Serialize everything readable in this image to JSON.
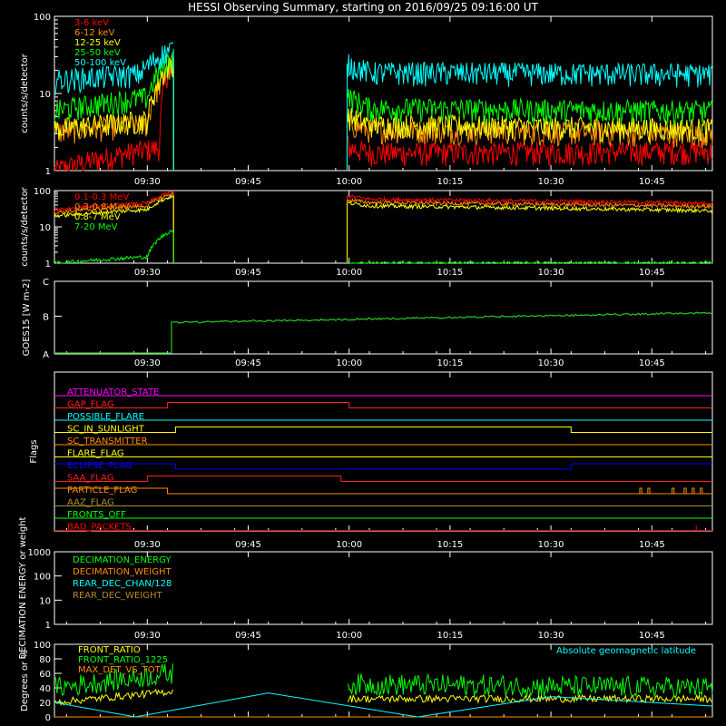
{
  "title": "HESSI Observing Summary, starting on 2016/09/25 09:16:00 UT",
  "time_labels": [
    "09:30",
    "09:45",
    "10:00",
    "10:15",
    "10:30",
    "10:45"
  ],
  "colors": {
    "background": "#000000",
    "axes": "#ffffff",
    "red": "#ff0000",
    "orange": "#ff8c00",
    "yellow": "#ffff00",
    "green": "#00ff00",
    "cyan": "#00ffff",
    "magenta": "#ff00ff",
    "blue": "#0000ff",
    "olive": "#b08c2c",
    "goes_green": "#22cc22"
  },
  "chart_data": [
    {
      "id": "lo_energy",
      "type": "line",
      "ylabel": "counts/s/detector",
      "yscale": "log",
      "ylim": [
        1,
        100
      ],
      "ytick_labels": [
        "1",
        "10",
        "100"
      ],
      "legend_position": "top-left",
      "series": [
        {
          "name": "3-6 keV",
          "color": "#ff0000",
          "values": [
            [
              9.27,
              1
            ],
            [
              9.53,
              2
            ],
            [
              9.56,
              28
            ],
            [
              10.0,
              2
            ],
            [
              10.05,
              1.7
            ],
            [
              10.9,
              1.8
            ]
          ]
        },
        {
          "name": "6-12 keV",
          "color": "#ff8c00",
          "values": [
            [
              9.27,
              3.2
            ],
            [
              9.5,
              4
            ],
            [
              9.56,
              22
            ],
            [
              10.0,
              4
            ],
            [
              10.05,
              3.4
            ],
            [
              10.9,
              3
            ]
          ]
        },
        {
          "name": "12-25 keV",
          "color": "#ffff00",
          "values": [
            [
              9.27,
              3.5
            ],
            [
              9.5,
              4.5
            ],
            [
              9.56,
              25
            ],
            [
              10.0,
              5
            ],
            [
              10.05,
              4
            ],
            [
              10.9,
              3.5
            ]
          ]
        },
        {
          "name": "25-50 keV",
          "color": "#00ff00",
          "values": [
            [
              9.27,
              6
            ],
            [
              9.5,
              9
            ],
            [
              9.56,
              30
            ],
            [
              10.0,
              9
            ],
            [
              10.05,
              6.5
            ],
            [
              10.9,
              6
            ]
          ]
        },
        {
          "name": "50-100 keV",
          "color": "#00ffff",
          "values": [
            [
              9.27,
              15
            ],
            [
              9.48,
              18
            ],
            [
              9.56,
              38
            ],
            [
              10.0,
              24
            ],
            [
              10.05,
              19
            ],
            [
              10.9,
              18
            ]
          ]
        }
      ]
    },
    {
      "id": "hi_energy",
      "type": "line",
      "ylabel": "counts/s/detector",
      "yscale": "log",
      "ylim": [
        1,
        100
      ],
      "ytick_labels": [
        "1",
        "10",
        "100"
      ],
      "legend_position": "top-left",
      "series": [
        {
          "name": "0.1-0.3 MeV",
          "color": "#ff0000",
          "values": [
            [
              9.27,
              30
            ],
            [
              9.5,
              45
            ],
            [
              9.56,
              90
            ],
            [
              10.0,
              70
            ],
            [
              10.05,
              58
            ],
            [
              10.9,
              45
            ]
          ]
        },
        {
          "name": "0.3-0.8 MeV",
          "color": "#ff8c00",
          "values": [
            [
              9.27,
              25
            ],
            [
              9.5,
              38
            ],
            [
              9.56,
              80
            ],
            [
              10.0,
              55
            ],
            [
              10.05,
              47
            ],
            [
              10.9,
              37
            ]
          ]
        },
        {
          "name": "0.8-7 MeV",
          "color": "#ffff00",
          "values": [
            [
              9.27,
              20
            ],
            [
              9.5,
              30
            ],
            [
              9.56,
              70
            ],
            [
              10.0,
              45
            ],
            [
              10.05,
              38
            ],
            [
              10.9,
              28
            ]
          ]
        },
        {
          "name": "7-20 MeV",
          "color": "#00ff00",
          "values": [
            [
              9.27,
              1
            ],
            [
              9.5,
              1.5
            ],
            [
              9.56,
              8
            ],
            [
              10.0,
              1
            ],
            [
              10.05,
              1
            ],
            [
              10.9,
              1
            ]
          ]
        }
      ]
    },
    {
      "id": "goes",
      "type": "line",
      "ylabel": "GOES15 [W m-2]",
      "yscale": "log",
      "ytick_labels": [
        "A",
        "B",
        "C"
      ],
      "series": [
        {
          "name": "",
          "color": "#22cc22",
          "values": [
            [
              9.27,
              "A"
            ],
            [
              9.55,
              "A"
            ],
            [
              9.56,
              "B"
            ],
            [
              10.0,
              "B"
            ],
            [
              10.9,
              "B"
            ]
          ]
        }
      ]
    },
    {
      "id": "flags",
      "type": "line",
      "ylabel": "Flags",
      "series": [
        {
          "name": "ATTENUATOR_STATE",
          "color": "#ff00ff",
          "values": [
            [
              9.27,
              0
            ],
            [
              10.9,
              0
            ]
          ]
        },
        {
          "name": "GAP_FLAG",
          "color": "#ff2020",
          "values": [
            [
              9.27,
              0
            ],
            [
              9.55,
              0
            ],
            [
              9.55,
              1
            ],
            [
              10.0,
              1
            ],
            [
              10.0,
              0
            ],
            [
              10.9,
              0
            ]
          ]
        },
        {
          "name": "POSSIBLE_FLARE",
          "color": "#00ffff",
          "values": [
            [
              9.27,
              0
            ],
            [
              10.9,
              0
            ]
          ]
        },
        {
          "name": "SC_IN_SUNLIGHT",
          "color": "#ffff00",
          "values": [
            [
              9.27,
              0
            ],
            [
              9.57,
              0
            ],
            [
              9.57,
              1
            ],
            [
              10.55,
              1
            ],
            [
              10.55,
              0
            ],
            [
              10.9,
              0
            ]
          ]
        },
        {
          "name": "SC_TRANSMITTER",
          "color": "#ff8c00",
          "values": [
            [
              9.27,
              0
            ],
            [
              10.9,
              0
            ]
          ]
        },
        {
          "name": "FLARE_FLAG",
          "color": "#ffff00",
          "values": [
            [
              9.27,
              0
            ],
            [
              10.9,
              0
            ]
          ]
        },
        {
          "name": "ECLIPSE_FLAG",
          "color": "#0000ff",
          "values": [
            [
              9.27,
              1
            ],
            [
              9.57,
              1
            ],
            [
              9.57,
              0
            ],
            [
              10.55,
              0
            ],
            [
              10.55,
              1
            ],
            [
              10.9,
              1
            ]
          ]
        },
        {
          "name": "SAA_FLAG",
          "color": "#ff2020",
          "values": [
            [
              9.27,
              0
            ],
            [
              9.5,
              0
            ],
            [
              9.5,
              1
            ],
            [
              9.98,
              1
            ],
            [
              9.98,
              0
            ],
            [
              10.9,
              0
            ]
          ]
        },
        {
          "name": "PARTICLE_FLAG",
          "color": "#ff8c00",
          "values": [
            [
              9.27,
              1
            ],
            [
              9.55,
              1
            ],
            [
              9.55,
              0
            ],
            [
              10.9,
              0
            ]
          ]
        },
        {
          "name": "AAZ_FLAG",
          "color": "#b08c2c",
          "values": [
            [
              9.27,
              0
            ],
            [
              10.9,
              0
            ]
          ]
        },
        {
          "name": "FRONTS_OFF",
          "color": "#00ff00",
          "values": [
            [
              9.27,
              0
            ],
            [
              10.9,
              0
            ]
          ]
        },
        {
          "name": "BAD_PACKETS",
          "color": "#ff0000",
          "values": [
            [
              9.27,
              0
            ],
            [
              10.9,
              0
            ]
          ]
        }
      ]
    },
    {
      "id": "decimation",
      "type": "line",
      "ylabel": "DECIMATION ENERGY or weight",
      "yscale": "log",
      "ylim": [
        1,
        1000
      ],
      "ytick_labels": [
        "1",
        "10",
        "100",
        "1000"
      ],
      "legend_position": "top-left",
      "series": [
        {
          "name": "DECIMATION_ENERGY",
          "color": "#00ff00",
          "values": []
        },
        {
          "name": "DECIMATION_WEIGHT",
          "color": "#ff8c00",
          "values": []
        },
        {
          "name": "REAR_DEC_CHAN/128",
          "color": "#00ffff",
          "values": []
        },
        {
          "name": "REAR_DEC_WEIGHT",
          "color": "#b08c2c",
          "values": []
        }
      ]
    },
    {
      "id": "ratios",
      "type": "line",
      "ylabel": "Degrees or %",
      "ylim": [
        0,
        100
      ],
      "ytick_labels": [
        "0",
        "20",
        "40",
        "60",
        "80",
        "100"
      ],
      "legend_position": "top-left",
      "annotation": "Absolute geomagnetic latitude",
      "series": [
        {
          "name": "FRONT_RATIO",
          "color": "#ffff00",
          "values": [
            [
              9.27,
              20
            ],
            [
              9.56,
              35
            ],
            [
              10.0,
              25
            ],
            [
              10.9,
              25
            ]
          ]
        },
        {
          "name": "FRONT_RATIO_1225",
          "color": "#00ff00",
          "values": [
            [
              9.27,
              40
            ],
            [
              9.56,
              60
            ],
            [
              10.0,
              45
            ],
            [
              10.9,
              40
            ]
          ]
        },
        {
          "name": "MAX_DET_VS_TOT",
          "color": "#ff8c00",
          "values": [
            [
              9.27,
              0
            ],
            [
              10.9,
              0
            ]
          ]
        },
        {
          "name": "Absolute geomagnetic latitude",
          "color": "#00ffff",
          "values": [
            [
              9.27,
              20
            ],
            [
              9.47,
              0
            ],
            [
              9.8,
              33
            ],
            [
              10.17,
              0
            ],
            [
              10.5,
              28
            ],
            [
              10.9,
              15
            ]
          ]
        }
      ]
    }
  ]
}
